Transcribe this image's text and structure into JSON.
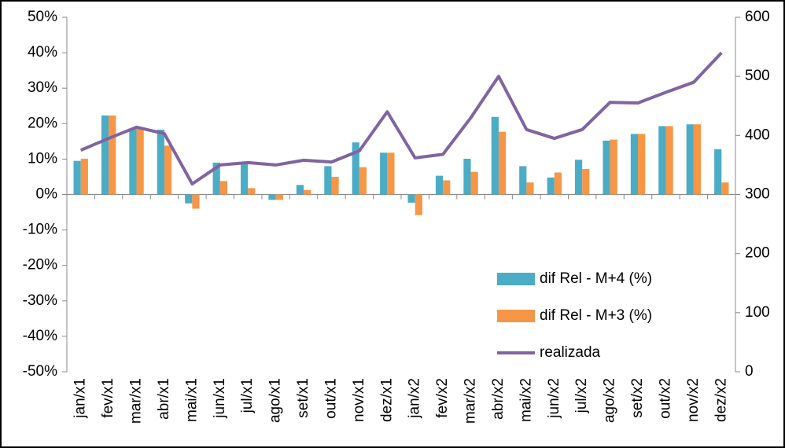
{
  "chart_data": {
    "type": "bar",
    "categories": [
      "jan/x1",
      "fev/x1",
      "mar/x1",
      "abr/x1",
      "mai/x1",
      "jun/x1",
      "jul/x1",
      "ago/x1",
      "set/x1",
      "out/x1",
      "nov/x1",
      "dez/x1",
      "jan/x2",
      "fev/x2",
      "mar/x2",
      "abr/x2",
      "mai/x2",
      "jun/x2",
      "jul/x2",
      "ago/x2",
      "set/x2",
      "out/x2",
      "nov/x2",
      "dez/x2"
    ],
    "series": [
      {
        "name": "dif Rel - M+4 (%)",
        "color": "#4bacc6",
        "values": [
          9.5,
          22.3,
          18.5,
          18.3,
          -2.5,
          9,
          9,
          -1.5,
          2.7,
          8,
          14.7,
          11.8,
          -2.3,
          5.3,
          10.1,
          21.9,
          8,
          4.8,
          9.8,
          15.2,
          17.1,
          19.3,
          19.8,
          12.8
        ]
      },
      {
        "name": "dif Rel - M+3 (%)",
        "color": "#f79646",
        "values": [
          10.1,
          22.3,
          18.6,
          13.8,
          -4,
          3.8,
          1.8,
          -1.5,
          1.3,
          5,
          7.7,
          11.8,
          -5.8,
          4,
          6.4,
          17.7,
          3.4,
          6.2,
          7.2,
          15.5,
          17.1,
          19.3,
          19.8,
          3.4
        ]
      },
      {
        "name": "realizada",
        "color": "#8064a2",
        "type": "line",
        "axis": "y2",
        "values": [
          375,
          395,
          414,
          403,
          318,
          350,
          354,
          350,
          358,
          355,
          374,
          440,
          362,
          368,
          430,
          500,
          410,
          395,
          410,
          456,
          455,
          473,
          490,
          540
        ]
      }
    ],
    "ylim": [
      -50,
      50
    ],
    "yticks": [
      {
        "value": -50,
        "label": "-50%"
      },
      {
        "value": -40,
        "label": "-40%"
      },
      {
        "value": -30,
        "label": "-30%"
      },
      {
        "value": -20,
        "label": "-20%"
      },
      {
        "value": -10,
        "label": "-10%"
      },
      {
        "value": 0,
        "label": "0%"
      },
      {
        "value": 10,
        "label": "10%"
      },
      {
        "value": 20,
        "label": "20%"
      },
      {
        "value": 30,
        "label": "30%"
      },
      {
        "value": 40,
        "label": "40%"
      },
      {
        "value": 50,
        "label": "50%"
      }
    ],
    "y2lim": [
      0,
      600
    ],
    "y2ticks": [
      0,
      100,
      200,
      300,
      400,
      500,
      600
    ],
    "legend": "lower right"
  }
}
